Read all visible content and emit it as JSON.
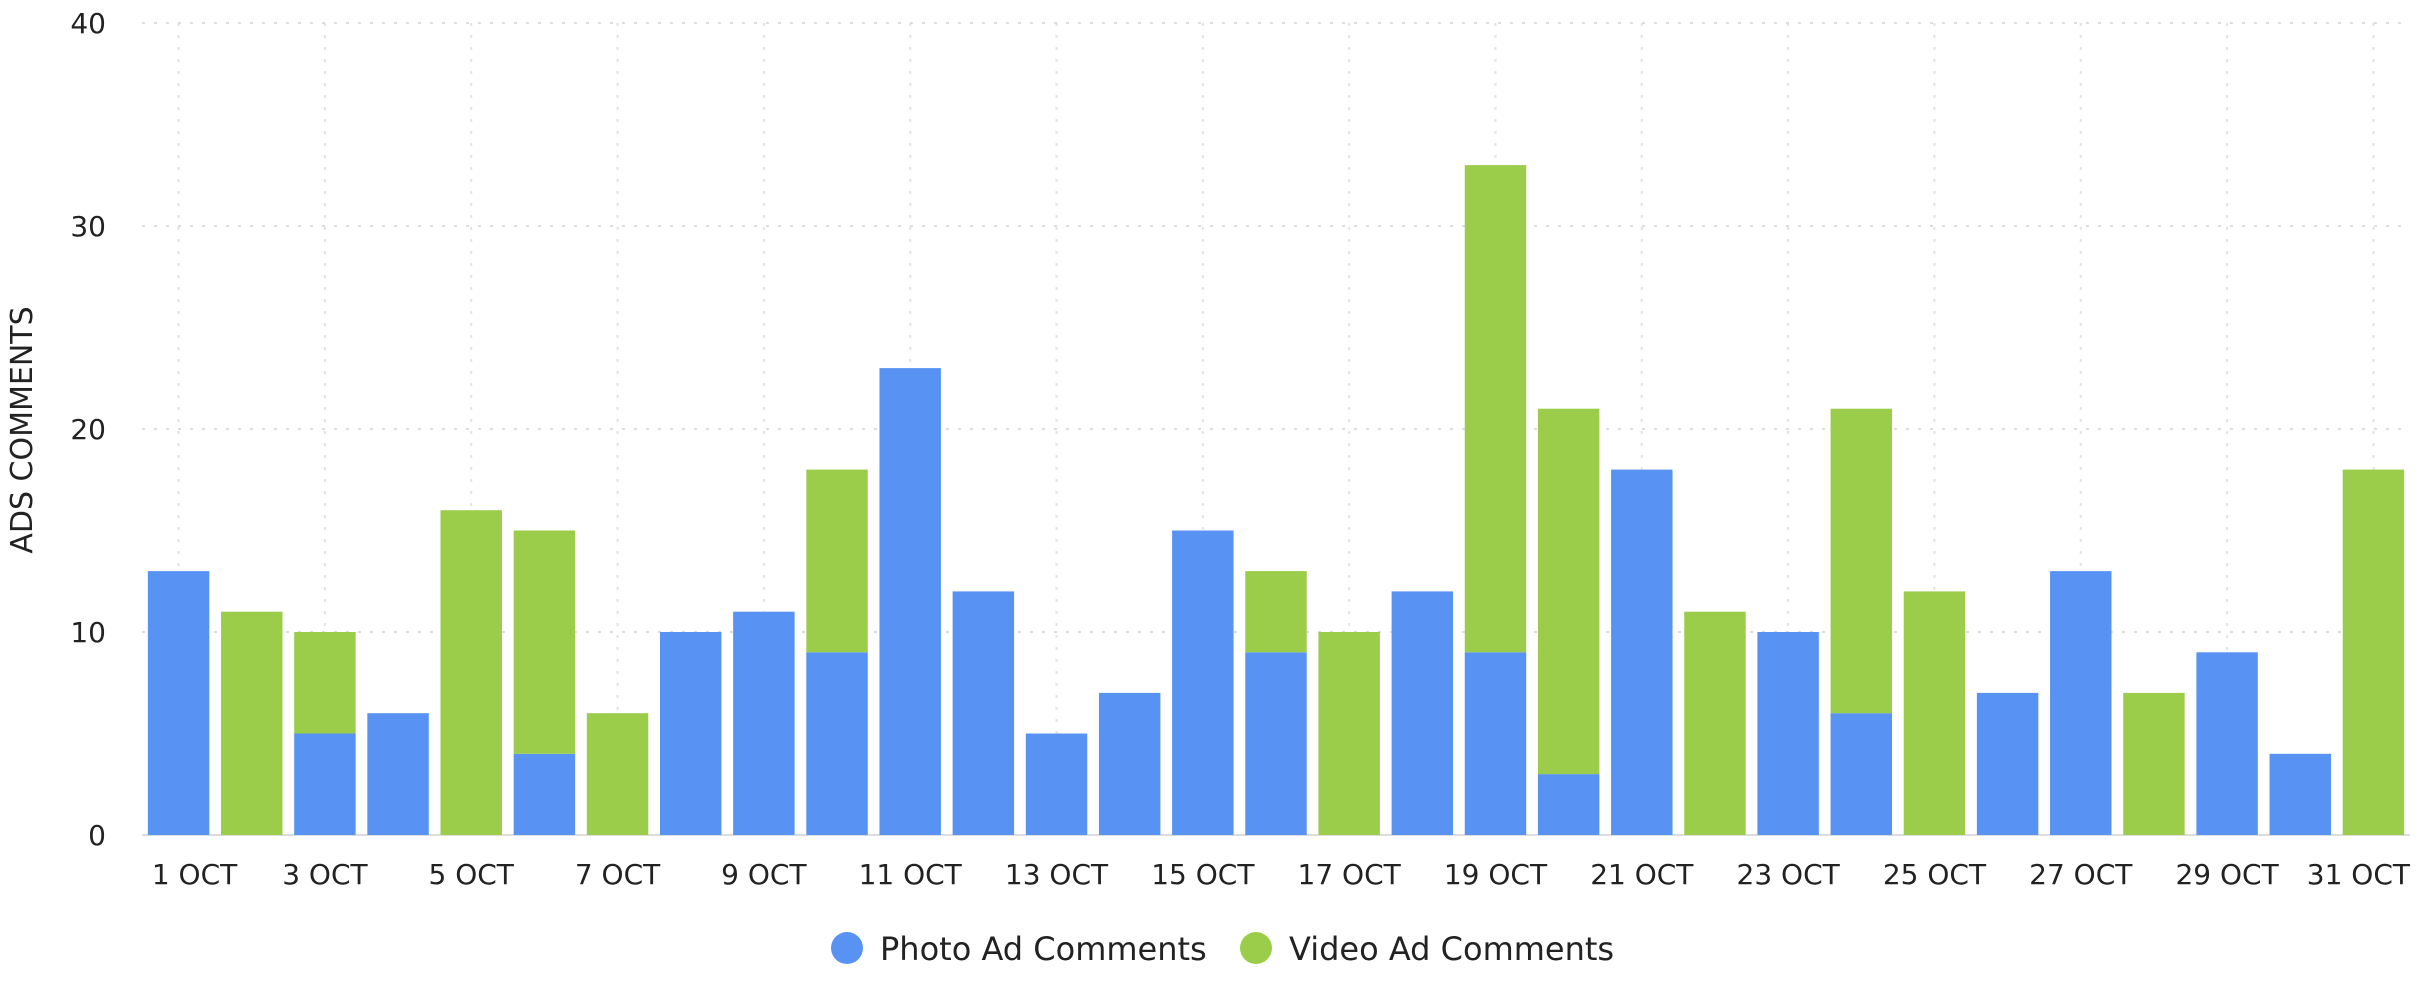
{
  "chart_data": {
    "type": "bar",
    "stacked": true,
    "title": "",
    "xlabel": "",
    "ylabel": "ADS COMMENTS",
    "ylim": [
      0,
      40
    ],
    "yticks": [
      0,
      10,
      20,
      30,
      40
    ],
    "grid": true,
    "legend_placement": "bottom-center",
    "categories": [
      "1 OCT",
      "2 OCT",
      "3 OCT",
      "4 OCT",
      "5 OCT",
      "6 OCT",
      "7 OCT",
      "8 OCT",
      "9 OCT",
      "10 OCT",
      "11 OCT",
      "12 OCT",
      "13 OCT",
      "14 OCT",
      "15 OCT",
      "16 OCT",
      "17 OCT",
      "18 OCT",
      "19 OCT",
      "20 OCT",
      "21 OCT",
      "22 OCT",
      "23 OCT",
      "24 OCT",
      "25 OCT",
      "26 OCT",
      "27 OCT",
      "28 OCT",
      "29 OCT",
      "30 OCT",
      "31 OCT"
    ],
    "x_tick_labels": [
      "1 OCT",
      "3 OCT",
      "5 OCT",
      "7 OCT",
      "9 OCT",
      "11 OCT",
      "13 OCT",
      "15 OCT",
      "17 OCT",
      "19 OCT",
      "21 OCT",
      "23 OCT",
      "25 OCT",
      "27 OCT",
      "29 OCT",
      "31 OCT"
    ],
    "series": [
      {
        "name": "Photo Ad Comments",
        "color": "#5893f3",
        "values": [
          13,
          0,
          5,
          6,
          0,
          4,
          0,
          10,
          11,
          9,
          23,
          12,
          5,
          7,
          15,
          9,
          0,
          12,
          9,
          3,
          18,
          0,
          10,
          6,
          0,
          7,
          13,
          0,
          9,
          4,
          0
        ]
      },
      {
        "name": "Video Ad Comments",
        "color": "#9bcd4b",
        "values": [
          0,
          11,
          5,
          0,
          16,
          11,
          6,
          0,
          0,
          9,
          0,
          0,
          0,
          0,
          0,
          4,
          10,
          0,
          24,
          18,
          0,
          11,
          0,
          15,
          12,
          0,
          0,
          7,
          0,
          0,
          18
        ]
      }
    ]
  }
}
